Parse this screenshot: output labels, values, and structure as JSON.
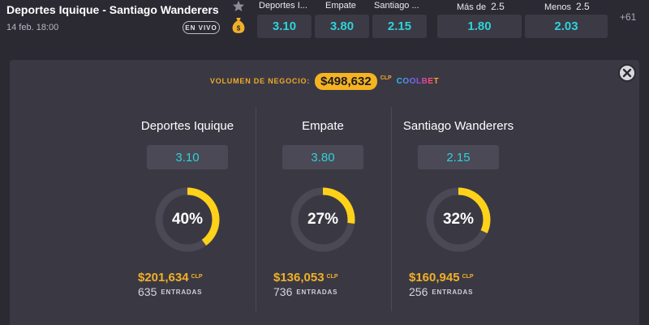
{
  "match": {
    "title": "Deportes Iquique - Santiago Wanderers",
    "date": "14 feb. 18:00",
    "live_badge": "EN VIVO",
    "more_markets": "+61"
  },
  "odds_header": {
    "home": "Deportes I...",
    "draw": "Empate",
    "away": "Santiago ...",
    "over": "Más de",
    "over_line": "2.5",
    "under": "Menos",
    "under_line": "2.5"
  },
  "odds": {
    "home": "3.10",
    "draw": "3.80",
    "away": "2.15",
    "over": "1.80",
    "under": "2.03"
  },
  "volume": {
    "label": "VOLUMEN DE NEGOCIO:",
    "amount": "$498,632",
    "currency": "CLP",
    "brand": "COOLBET"
  },
  "outcomes": [
    {
      "name": "Deportes Iquique",
      "odd": "3.10",
      "percent_text": "40%",
      "percent": 40,
      "amount": "$201,634",
      "currency": "CLP",
      "entries": "635",
      "entries_label": "ENTRADAS"
    },
    {
      "name": "Empate",
      "odd": "3.80",
      "percent_text": "27%",
      "percent": 27,
      "amount": "$136,053",
      "currency": "CLP",
      "entries": "736",
      "entries_label": "ENTRADAS"
    },
    {
      "name": "Santiago Wanderers",
      "odd": "2.15",
      "percent_text": "32%",
      "percent": 32,
      "amount": "$160,945",
      "currency": "CLP",
      "entries": "256",
      "entries_label": "ENTRADAS"
    }
  ],
  "colors": {
    "accent_odds": "#2dd3d9",
    "money": "#f2b028",
    "donut_fill": "#ffd21a",
    "donut_track": "#4a4955"
  },
  "icons": [
    "star-icon",
    "money-bag-icon",
    "close-icon"
  ]
}
